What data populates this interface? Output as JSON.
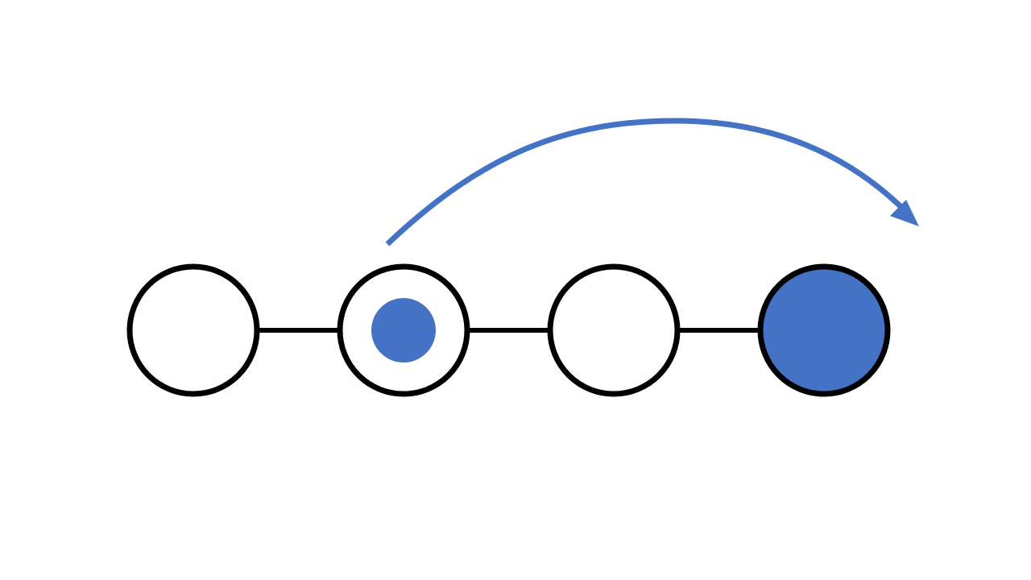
{
  "diagram": {
    "node_count": 4,
    "nodes": [
      {
        "index": 1,
        "state": "empty"
      },
      {
        "index": 2,
        "state": "has-token"
      },
      {
        "index": 3,
        "state": "empty"
      },
      {
        "index": 4,
        "state": "filled"
      }
    ],
    "edges": [
      {
        "from": 1,
        "to": 2
      },
      {
        "from": 2,
        "to": 3
      },
      {
        "from": 3,
        "to": 4
      }
    ],
    "jump": {
      "from": 2,
      "to": 4,
      "direction": "forward"
    }
  },
  "colors": {
    "background": "#ffffff",
    "outline": "#000000",
    "accent": "#4472c4"
  }
}
